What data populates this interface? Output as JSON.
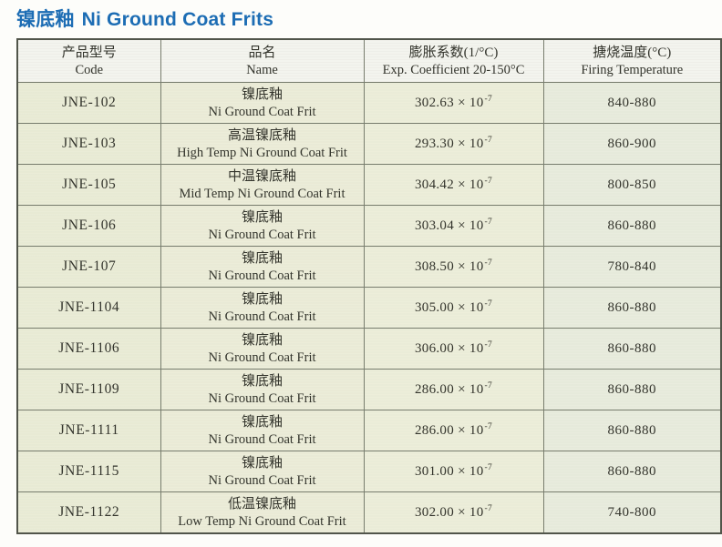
{
  "page_title": {
    "cn": "镍底釉",
    "en": "Ni Ground Coat Frits"
  },
  "colors": {
    "title_blue": "#1d6db4",
    "cell_tint": "#ecedd9",
    "header_bg": "#f3f4ee",
    "border": "#787d6e"
  },
  "table": {
    "headers": [
      {
        "cn": "产品型号",
        "en": "Code"
      },
      {
        "cn": "品名",
        "en": "Name"
      },
      {
        "cn": "膨胀系数(1/°C)",
        "en": "Exp. Coefficient 20-150°C"
      },
      {
        "cn": "搪烧温度(°C)",
        "en": "Firing Temperature"
      }
    ],
    "rows": [
      {
        "code": "JNE-102",
        "name_cn": "镍底釉",
        "name_en": "Ni Ground Coat Frit",
        "coef_base": "302.63 × 10",
        "coef_exp": "-7",
        "firing": "840-880"
      },
      {
        "code": "JNE-103",
        "name_cn": "高温镍底釉",
        "name_en": "High Temp Ni Ground Coat Frit",
        "coef_base": "293.30 × 10",
        "coef_exp": "-7",
        "firing": "860-900"
      },
      {
        "code": "JNE-105",
        "name_cn": "中温镍底釉",
        "name_en": "Mid Temp Ni Ground Coat Frit",
        "coef_base": "304.42 × 10",
        "coef_exp": "-7",
        "firing": "800-850"
      },
      {
        "code": "JNE-106",
        "name_cn": "镍底釉",
        "name_en": "Ni Ground Coat Frit",
        "coef_base": "303.04 × 10",
        "coef_exp": "-7",
        "firing": "860-880"
      },
      {
        "code": "JNE-107",
        "name_cn": "镍底釉",
        "name_en": "Ni Ground Coat Frit",
        "coef_base": "308.50 × 10",
        "coef_exp": "-7",
        "firing": "780-840"
      },
      {
        "code": "JNE-1104",
        "name_cn": "镍底釉",
        "name_en": "Ni Ground Coat Frit",
        "coef_base": "305.00 × 10",
        "coef_exp": "-7",
        "firing": "860-880"
      },
      {
        "code": "JNE-1106",
        "name_cn": "镍底釉",
        "name_en": "Ni Ground Coat Frit",
        "coef_base": "306.00 × 10",
        "coef_exp": "-7",
        "firing": "860-880"
      },
      {
        "code": "JNE-1109",
        "name_cn": "镍底釉",
        "name_en": "Ni Ground Coat Frit",
        "coef_base": "286.00 × 10",
        "coef_exp": "-7",
        "firing": "860-880"
      },
      {
        "code": "JNE-1111",
        "name_cn": "镍底釉",
        "name_en": "Ni Ground Coat Frit",
        "coef_base": "286.00 × 10",
        "coef_exp": "-7",
        "firing": "860-880"
      },
      {
        "code": "JNE-1115",
        "name_cn": "镍底釉",
        "name_en": "Ni Ground Coat Frit",
        "coef_base": "301.00 × 10",
        "coef_exp": "-7",
        "firing": "860-880"
      },
      {
        "code": "JNE-1122",
        "name_cn": "低温镍底釉",
        "name_en": "Low Temp Ni Ground Coat Frit",
        "coef_base": "302.00 × 10",
        "coef_exp": "-7",
        "firing": "740-800"
      }
    ]
  }
}
